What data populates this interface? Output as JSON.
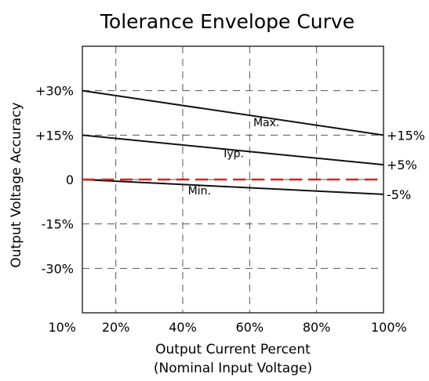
{
  "chart_data": {
    "type": "line",
    "title": "Tolerance Envelope Curve",
    "xlabel": "Output Current Percent",
    "xlabel_sub": "(Nominal Input Voltage)",
    "ylabel": "Output Voltage Accuracy",
    "xlim": [
      10,
      100
    ],
    "ylim": [
      -45,
      45
    ],
    "x_ticks": [
      {
        "value": 10,
        "label": "10%"
      },
      {
        "value": 20,
        "label": "20%"
      },
      {
        "value": 40,
        "label": "40%"
      },
      {
        "value": 60,
        "label": "60%"
      },
      {
        "value": 80,
        "label": "80%"
      },
      {
        "value": 100,
        "label": "100%"
      }
    ],
    "y_ticks": [
      {
        "value": 30,
        "label": "+30%"
      },
      {
        "value": 15,
        "label": "+15%"
      },
      {
        "value": 0,
        "label": "0"
      },
      {
        "value": -15,
        "label": "-15%"
      },
      {
        "value": -30,
        "label": "-30%"
      }
    ],
    "grid": true,
    "series": [
      {
        "name": "Max.",
        "x": [
          10,
          100
        ],
        "y": [
          30,
          15
        ],
        "color": "#111111",
        "dash": false,
        "end_label": "+15%",
        "label_at": [
          65,
          18
        ]
      },
      {
        "name": "Typ.",
        "x": [
          10,
          100
        ],
        "y": [
          15,
          5
        ],
        "color": "#111111",
        "dash": false,
        "end_label": "+5%",
        "label_at": [
          55,
          7.5
        ]
      },
      {
        "name": "Min.",
        "x": [
          10,
          100
        ],
        "y": [
          0,
          -5
        ],
        "color": "#111111",
        "dash": false,
        "end_label": "-5%",
        "label_at": [
          45,
          -5
        ]
      },
      {
        "x": [
          10,
          100
        ],
        "y": [
          0,
          0
        ],
        "color": "#e0201b",
        "dash": true
      }
    ]
  }
}
